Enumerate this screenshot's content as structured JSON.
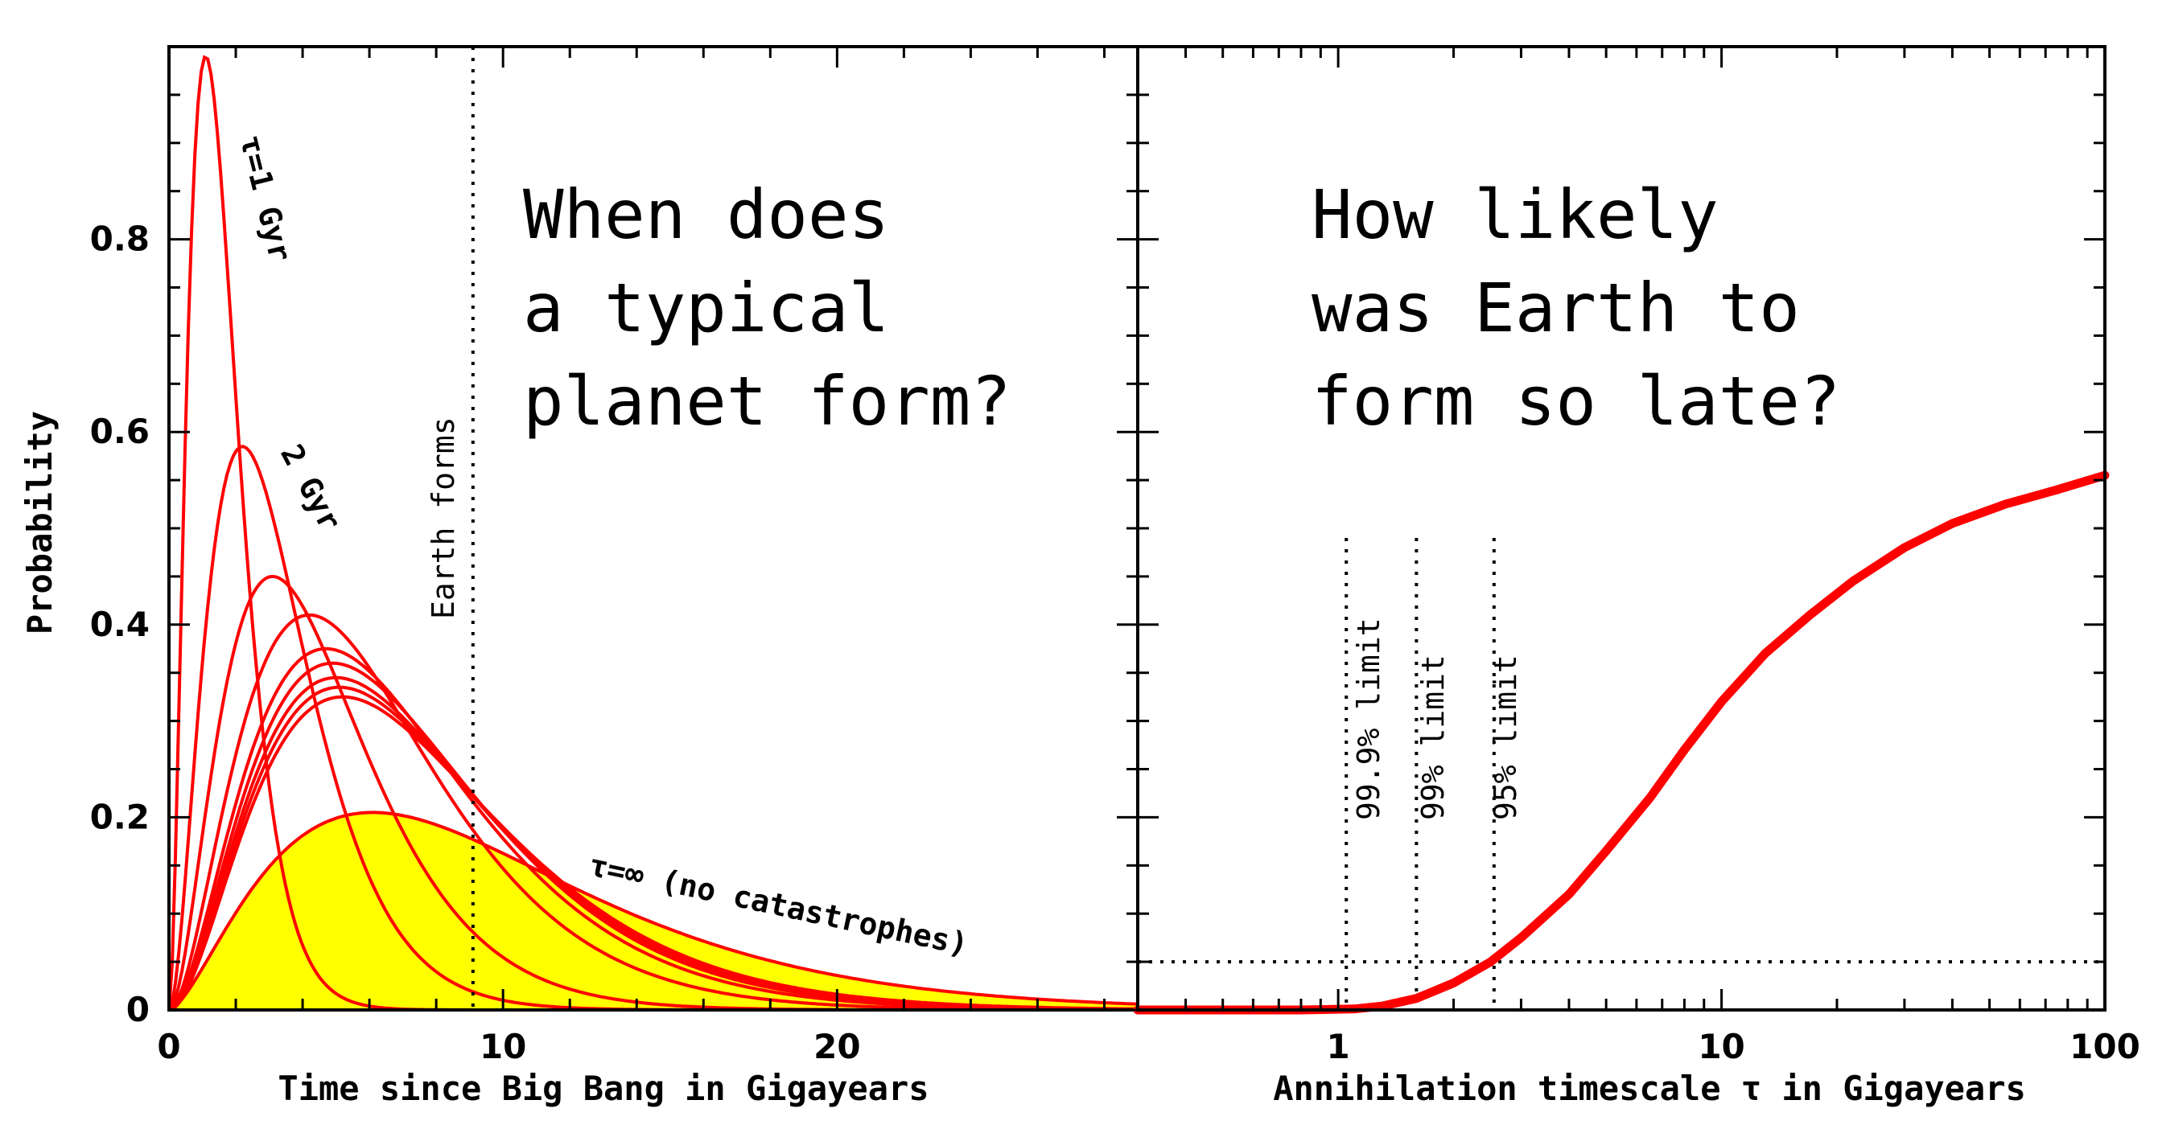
{
  "chart_data": [
    {
      "type": "line",
      "panel": "left",
      "title": "When does a typical planet form?",
      "title_lines": [
        "When does",
        "a typical",
        "planet form?"
      ],
      "xlabel": "Time since Big Bang in Gigayears",
      "ylabel": "Probability",
      "xlim": [
        0,
        29
      ],
      "ylim": [
        0,
        1
      ],
      "x_ticks": [
        0,
        10,
        20
      ],
      "y_ticks": [
        0,
        0.2,
        0.4,
        0.6,
        0.8
      ],
      "y_tick_labels": [
        "0",
        "0.2",
        "0.4",
        "0.6",
        "0.8"
      ],
      "earth_forms": {
        "x": 9.1,
        "label": "Earth forms"
      },
      "shaded_series": "τ=∞ (no catastrophes)",
      "fill_color": "#ffff00",
      "line_color": "#ff0000",
      "series": [
        {
          "name": "τ=1 Gyr",
          "peak_x": 1.1,
          "peak_y": 0.99
        },
        {
          "name": "2 Gyr",
          "peak_x": 2.2,
          "peak_y": 0.585
        },
        {
          "peak_x": 3.1,
          "peak_y": 0.45
        },
        {
          "peak_x": 4.2,
          "peak_y": 0.41
        },
        {
          "peak_x": 4.7,
          "peak_y": 0.375
        },
        {
          "peak_x": 4.9,
          "peak_y": 0.36
        },
        {
          "peak_x": 5.0,
          "peak_y": 0.345
        },
        {
          "peak_x": 5.1,
          "peak_y": 0.335
        },
        {
          "peak_x": 5.2,
          "peak_y": 0.325
        },
        {
          "name": "τ=∞ (no catastrophes)",
          "peak_x": 6.1,
          "peak_y": 0.205,
          "end_y": 0.02
        }
      ],
      "annotations": [
        "τ=1 Gyr",
        "2 Gyr",
        "τ=∞ (no catastrophes)",
        "Earth forms"
      ]
    },
    {
      "type": "line",
      "panel": "right",
      "title": "How likely was Earth to form so late?",
      "title_lines": [
        "How likely",
        "was Earth to",
        "form so late?"
      ],
      "xlabel": "Annihilation timescale τ in Gigayears",
      "xscale": "log",
      "xlim": [
        0.3,
        100
      ],
      "ylim": [
        0,
        1
      ],
      "x_ticks": [
        1,
        10,
        100
      ],
      "x_tick_labels": [
        "1",
        "10",
        "100"
      ],
      "line_color": "#ff0000",
      "series": [
        {
          "x": [
            0.3,
            0.8,
            1.1,
            1.3,
            1.6,
            2.0,
            2.5,
            3.0,
            4.0,
            5.0,
            6.5,
            8.0,
            10,
            13,
            17,
            22,
            30,
            40,
            55,
            75,
            100
          ],
          "values": [
            0,
            0,
            0.001,
            0.004,
            0.012,
            0.028,
            0.05,
            0.075,
            0.12,
            0.165,
            0.22,
            0.27,
            0.32,
            0.37,
            0.41,
            0.445,
            0.48,
            0.505,
            0.525,
            0.54,
            0.555
          ]
        }
      ],
      "threshold_y": 0.05,
      "limits": [
        {
          "label": "99.9% limit",
          "x": 1.05
        },
        {
          "label": "99% limit",
          "x": 1.6
        },
        {
          "label": "95% limit",
          "x": 2.55
        }
      ]
    }
  ]
}
